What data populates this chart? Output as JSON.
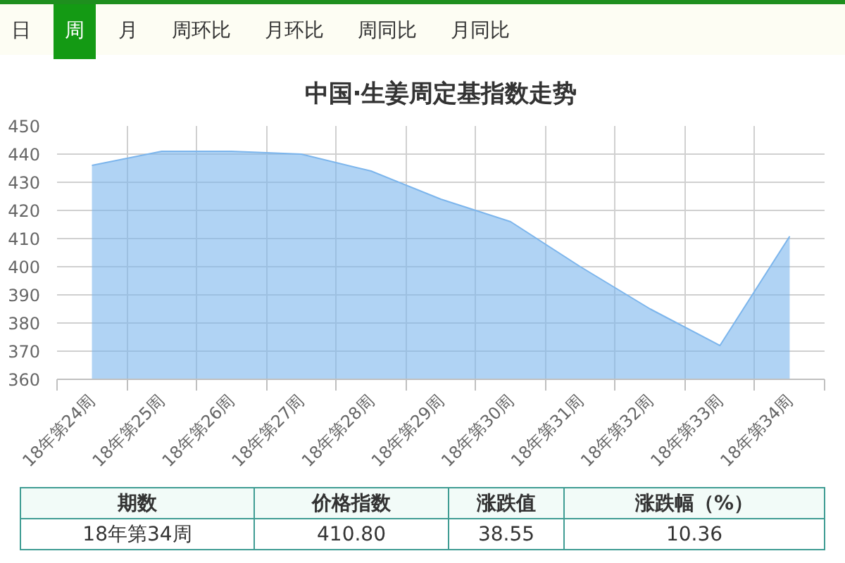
{
  "chart_data": {
    "type": "area",
    "title": "中国·生姜周定基指数走势",
    "categories": [
      "18年第24周",
      "18年第25周",
      "18年第26周",
      "18年第27周",
      "18年第28周",
      "18年第29周",
      "18年第30周",
      "18年第31周",
      "18年第32周",
      "18年第33周",
      "18年第34周"
    ],
    "values": [
      436,
      441,
      441,
      440,
      434,
      424,
      416,
      400,
      385,
      372,
      410.8
    ],
    "color": "#7cb5ec",
    "ylim": [
      360,
      450
    ],
    "yticks": [
      360,
      370,
      380,
      390,
      400,
      410,
      420,
      430,
      440,
      450
    ],
    "grid": true,
    "annotations": [
      "日",
      "周",
      "月",
      "周环比",
      "月环比",
      "周同比",
      "月同比",
      "期数",
      "价格指数",
      "涨跌值",
      "涨跌幅（%）",
      "18年第34周",
      "410.80",
      "38.55",
      "10.36"
    ]
  }
}
